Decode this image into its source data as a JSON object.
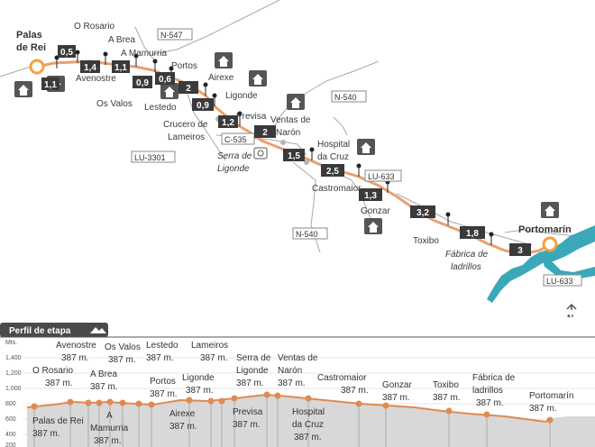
{
  "map": {
    "start_label": [
      "Palas",
      "de Rei"
    ],
    "end_label": "Portomarín",
    "north_label": "N",
    "places": [
      {
        "lines": [
          "O Rosario"
        ]
      },
      {
        "lines": [
          "A Brea"
        ]
      },
      {
        "lines": [
          "A Mamurria"
        ]
      },
      {
        "lines": [
          "Portos"
        ]
      },
      {
        "lines": [
          "Avenostre"
        ]
      },
      {
        "lines": [
          "Os Valos"
        ]
      },
      {
        "lines": [
          "Lestedo"
        ]
      },
      {
        "lines": [
          "Airexe"
        ]
      },
      {
        "lines": [
          "Ligonde"
        ]
      },
      {
        "lines": [
          "Crucero de",
          "Lameiros"
        ]
      },
      {
        "lines": [
          "Previsa"
        ]
      },
      {
        "lines": [
          "Ventas de",
          "Narón"
        ]
      },
      {
        "lines": [
          "Hospital",
          "da Cruz"
        ]
      },
      {
        "lines": [
          "Castromaior"
        ]
      },
      {
        "lines": [
          "Gonzar"
        ]
      },
      {
        "lines": [
          "Toxibo"
        ]
      },
      {
        "lines": [
          "Serra de",
          "Ligonde"
        ],
        "italic": true
      },
      {
        "lines": [
          "Fábrica de",
          "ladrillos"
        ],
        "italic": true
      }
    ],
    "roads": [
      "N-547",
      "N-540",
      "C-535",
      "LU-3301",
      "LU-633",
      "N-540",
      "LU-633"
    ],
    "distances": [
      "0,5",
      "1,4",
      "1,1",
      "1,1",
      "0,9",
      "0,6",
      "2",
      "0,9",
      "1,2",
      "2",
      "1,5",
      "2,5",
      "1,3",
      "3,2",
      "1,8",
      "3"
    ]
  },
  "profile": {
    "title": "Perfil de etapa",
    "y_unit": "Mts.",
    "y_ticks": [
      "1,400",
      "1,200",
      "1,000",
      "800",
      "600",
      "400",
      "200"
    ],
    "labels": [
      {
        "lines": [
          "O Rosario",
          "387 m."
        ]
      },
      {
        "lines": [
          "Avenostre",
          "387 m."
        ]
      },
      {
        "lines": [
          "Os Valos",
          "387 m."
        ]
      },
      {
        "lines": [
          "Lestedo",
          "387 m."
        ]
      },
      {
        "lines": [
          "Lameiros",
          "387 m."
        ]
      },
      {
        "lines": [
          "Serra de",
          "Ligonde",
          "387 m."
        ]
      },
      {
        "lines": [
          "Ventas de",
          "Narón",
          "387 m."
        ]
      },
      {
        "lines": [
          "Castromaior",
          "387 m."
        ]
      },
      {
        "lines": [
          "Gonzar",
          "387 m."
        ]
      },
      {
        "lines": [
          "Toxibo",
          "387 m."
        ]
      },
      {
        "lines": [
          "Fábrica de",
          "ladrillos",
          "387 m."
        ]
      },
      {
        "lines": [
          "Portomarín",
          "387 m."
        ]
      },
      {
        "lines": [
          "Palas de Rei",
          "387 m."
        ]
      },
      {
        "lines": [
          "A Brea",
          "387 m."
        ]
      },
      {
        "lines": [
          "A",
          "Mamurria",
          "387 m."
        ]
      },
      {
        "lines": [
          "Portos",
          "387 m."
        ]
      },
      {
        "lines": [
          "Ligonde",
          "387 m."
        ]
      },
      {
        "lines": [
          "Airexe",
          "387 m."
        ]
      },
      {
        "lines": [
          "Previsa",
          "387 m."
        ]
      },
      {
        "lines": [
          "Hospital",
          "da Cruz",
          "387 m."
        ]
      }
    ]
  },
  "colors": {
    "route": "#e8a070",
    "marker": "#f5a040",
    "box": "#3a3a3a",
    "road": "#9a9a9a",
    "river": "#3aa8b8",
    "profile_line": "#e08a50",
    "profile_fill": "#d8d8d8"
  }
}
